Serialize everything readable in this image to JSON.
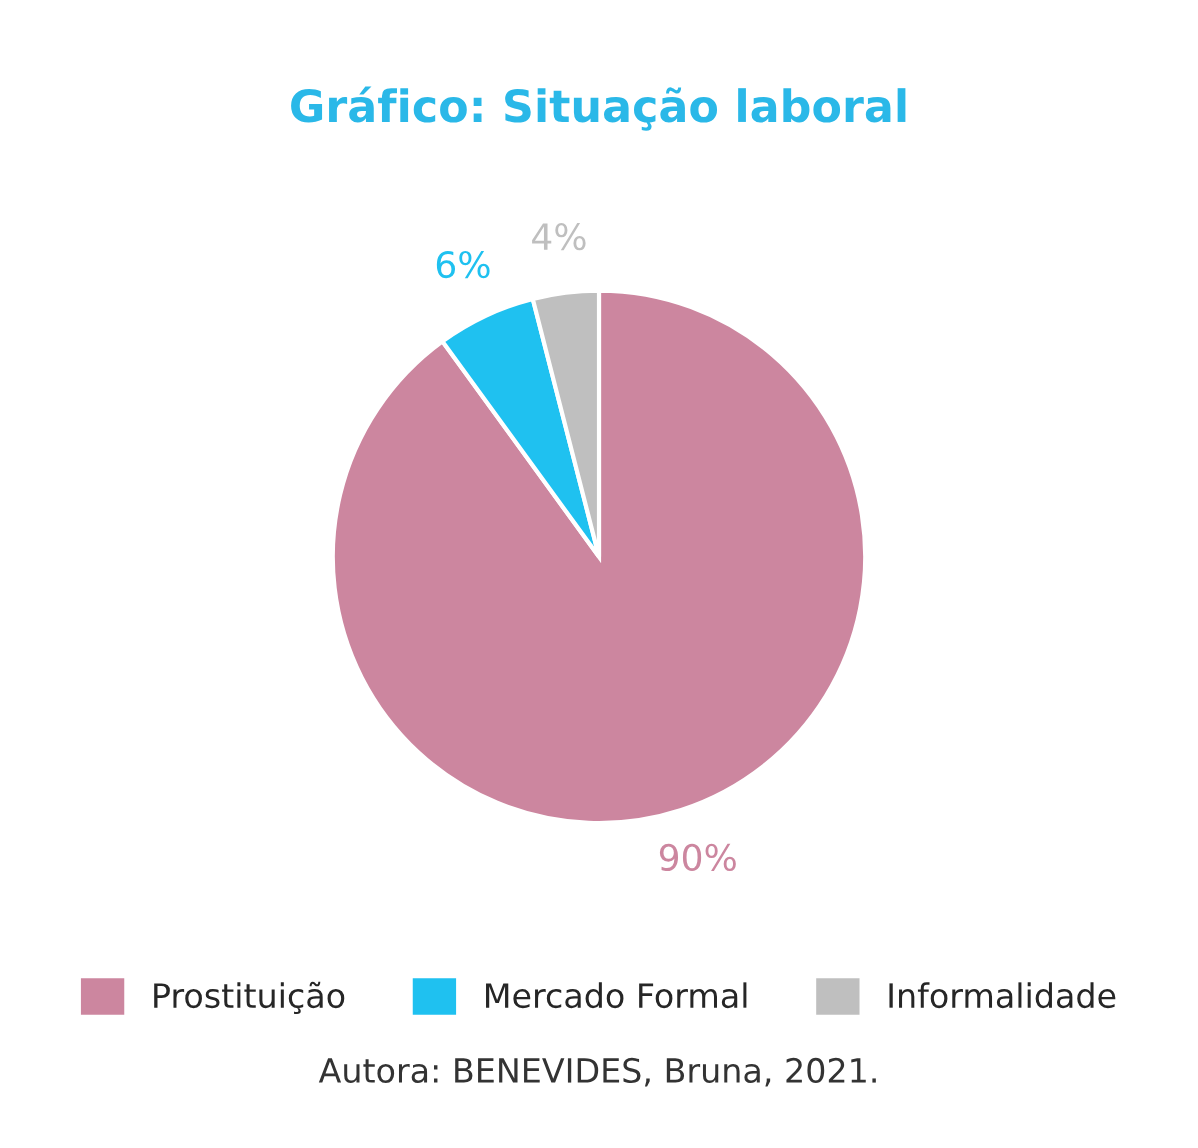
{
  "chart_data": {
    "type": "pie",
    "title": "Gráfico: Situação laboral",
    "categories": [
      "Prostituição",
      "Mercado Formal",
      "Informalidade"
    ],
    "values": [
      90,
      6,
      4
    ],
    "colors": [
      "#cc869f",
      "#1fc1f0",
      "#bfbfbf"
    ],
    "value_labels": [
      "90%",
      "6%",
      "4%"
    ],
    "legend": "bottom",
    "annotations": [
      "Autora: BENEVIDES, Bruna, 2021."
    ]
  }
}
